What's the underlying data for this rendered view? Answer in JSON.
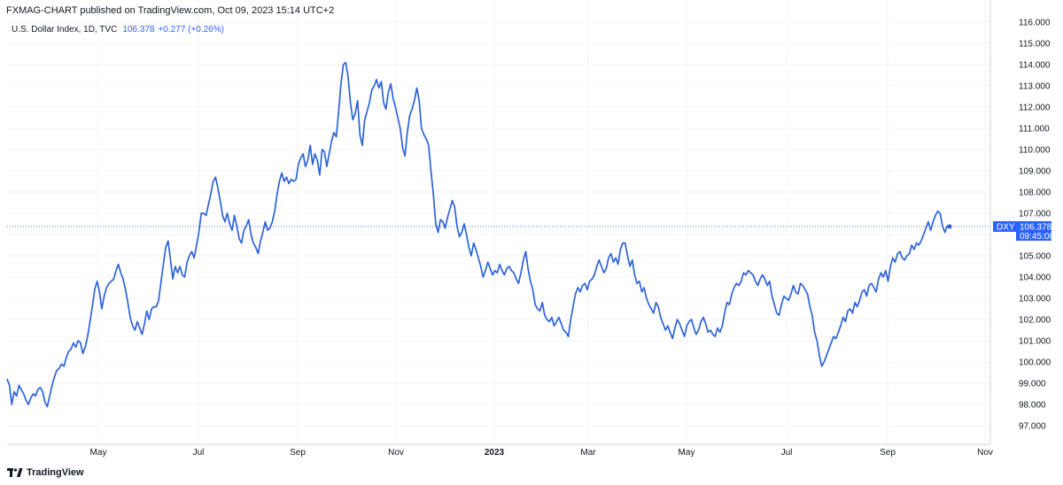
{
  "header": {
    "published": "FXMAG-CHART published on TradingView.com, Oct 09, 2023 15:14 UTC+2",
    "symbol": "U.S. Dollar Index, 1D, TVC",
    "last": "106.378",
    "change": "+0.277 (+0.26%)"
  },
  "footer": {
    "brand": "TradingView"
  },
  "price_label": {
    "ticker": "DXY",
    "value": "106.378",
    "time": "09:45:08"
  },
  "colors": {
    "line": "#2d63d9",
    "accent": "#2962ff",
    "grid": "#f0f3fa"
  },
  "chart_data": {
    "type": "line",
    "series": [
      {
        "values": [
          99.2,
          98.9,
          98.0,
          98.6,
          98.4,
          98.9,
          98.7,
          98.5,
          98.2,
          98.0,
          98.3,
          98.5,
          98.4,
          98.7,
          98.8,
          98.6,
          98.1,
          97.9,
          98.4,
          98.9,
          99.3,
          99.6,
          99.7,
          99.9,
          99.8,
          100.2,
          100.5,
          100.6,
          100.9,
          100.7,
          101.0,
          100.9,
          100.4,
          100.7,
          101.2,
          101.9,
          102.6,
          103.4,
          103.8,
          103.3,
          102.5,
          103.1,
          103.5,
          103.7,
          103.8,
          103.9,
          104.3,
          104.6,
          104.2,
          103.9,
          103.4,
          102.8,
          102.1,
          101.7,
          101.5,
          101.9,
          101.6,
          101.3,
          101.8,
          102.4,
          102.0,
          102.5,
          102.6,
          102.6,
          102.9,
          103.8,
          104.6,
          105.4,
          105.7,
          104.8,
          103.9,
          104.5,
          104.2,
          104.5,
          104.1,
          104.0,
          104.7,
          105.0,
          105.2,
          104.9,
          105.5,
          106.1,
          107.0,
          107.0,
          106.9,
          107.4,
          107.9,
          108.5,
          108.7,
          108.2,
          107.6,
          106.9,
          106.6,
          107.0,
          106.5,
          106.2,
          106.9,
          106.4,
          105.8,
          105.6,
          106.2,
          106.4,
          106.7,
          106.0,
          105.6,
          105.4,
          105.1,
          105.7,
          106.1,
          106.6,
          106.2,
          106.3,
          106.6,
          107.1,
          107.9,
          108.5,
          108.9,
          108.5,
          108.7,
          108.4,
          108.6,
          108.5,
          108.6,
          109.3,
          109.6,
          109.8,
          109.2,
          109.5,
          110.2,
          109.3,
          109.8,
          109.5,
          108.8,
          110.0,
          109.9,
          109.2,
          109.8,
          110.4,
          110.8,
          110.6,
          111.8,
          113.1,
          114.0,
          114.1,
          113.4,
          112.2,
          111.4,
          111.7,
          112.3,
          110.7,
          110.2,
          111.4,
          111.8,
          112.2,
          112.8,
          113.0,
          113.3,
          112.9,
          113.2,
          112.2,
          111.9,
          112.7,
          113.1,
          112.4,
          112.0,
          111.5,
          111.0,
          110.1,
          109.7,
          110.8,
          111.6,
          111.9,
          112.3,
          112.9,
          112.3,
          111.0,
          110.7,
          110.5,
          110.2,
          109.0,
          107.9,
          106.5,
          106.1,
          106.7,
          106.6,
          106.3,
          106.8,
          107.2,
          107.6,
          107.3,
          106.4,
          105.9,
          106.1,
          106.5,
          106.0,
          105.4,
          105.0,
          105.6,
          105.3,
          104.9,
          104.5,
          104.0,
          104.3,
          104.7,
          104.4,
          104.1,
          104.3,
          104.2,
          104.6,
          104.3,
          104.1,
          104.4,
          104.5,
          104.3,
          104.2,
          103.9,
          103.7,
          104.2,
          104.8,
          105.2,
          104.4,
          103.8,
          103.4,
          102.7,
          102.5,
          102.4,
          102.8,
          102.2,
          102.0,
          101.9,
          102.1,
          101.7,
          101.9,
          102.1,
          101.8,
          101.5,
          101.4,
          101.2,
          102.0,
          102.6,
          103.2,
          103.5,
          103.3,
          103.6,
          103.7,
          103.4,
          103.8,
          103.9,
          104.1,
          104.5,
          104.8,
          104.5,
          104.2,
          104.4,
          104.9,
          105.1,
          104.7,
          104.9,
          104.6,
          105.3,
          105.6,
          105.6,
          105.0,
          104.5,
          104.8,
          104.1,
          103.7,
          103.8,
          103.3,
          103.5,
          103.0,
          102.7,
          102.5,
          102.3,
          102.8,
          102.6,
          102.1,
          101.8,
          101.5,
          101.7,
          101.4,
          101.1,
          101.6,
          102.0,
          101.8,
          101.5,
          101.2,
          101.7,
          101.9,
          102.0,
          101.6,
          101.3,
          101.5,
          101.9,
          102.1,
          101.8,
          101.4,
          101.5,
          101.3,
          101.2,
          101.6,
          101.4,
          101.7,
          102.3,
          102.8,
          102.7,
          103.2,
          103.5,
          103.7,
          103.6,
          103.8,
          104.2,
          104.1,
          104.3,
          104.2,
          104.1,
          103.8,
          103.6,
          103.9,
          104.1,
          103.9,
          103.6,
          103.8,
          103.1,
          102.7,
          102.3,
          102.2,
          102.7,
          103.1,
          103.0,
          102.9,
          103.2,
          103.6,
          103.3,
          103.2,
          103.7,
          103.6,
          103.4,
          103.2,
          102.6,
          102.2,
          101.4,
          101.0,
          100.3,
          99.8,
          100.0,
          100.3,
          100.6,
          100.9,
          101.2,
          101.1,
          101.4,
          101.7,
          102.1,
          101.9,
          102.4,
          102.5,
          102.3,
          102.8,
          102.6,
          102.9,
          103.3,
          103.4,
          103.1,
          103.6,
          103.7,
          103.5,
          103.3,
          103.9,
          104.2,
          104.0,
          104.3,
          103.8,
          104.5,
          104.9,
          104.7,
          105.1,
          105.2,
          104.9,
          104.8,
          105.0,
          105.1,
          105.5,
          105.3,
          105.6,
          105.5,
          105.7,
          106.0,
          106.3,
          106.6,
          106.2,
          106.6,
          106.9,
          107.1,
          107.0,
          106.4,
          106.1,
          106.4,
          106.4
        ]
      }
    ],
    "start_date": "2022-04-01",
    "x_ticks": [
      "May",
      "Jul",
      "Sep",
      "Nov",
      "2023",
      "Mar",
      "May",
      "Jul",
      "Sep",
      "Nov"
    ],
    "x_ticks_bold": [
      "2023"
    ],
    "y_ticks": [
      97.0,
      98.0,
      99.0,
      100.0,
      101.0,
      102.0,
      103.0,
      104.0,
      105.0,
      106.0,
      107.0,
      108.0,
      109.0,
      110.0,
      111.0,
      112.0,
      113.0,
      114.0,
      115.0,
      116.0
    ],
    "y_tick_labels": [
      "97.000",
      "98.000",
      "99.000",
      "100.000",
      "101.000",
      "102.000",
      "103.000",
      "104.000",
      "105.000",
      "106.000",
      "107.000",
      "108.000",
      "109.000",
      "110.000",
      "111.000",
      "112.000",
      "113.000",
      "114.000",
      "115.000",
      "116.000"
    ],
    "ylim": [
      96.5,
      116.3
    ],
    "last_value": 106.378,
    "grid": true,
    "axis_position": "right"
  }
}
